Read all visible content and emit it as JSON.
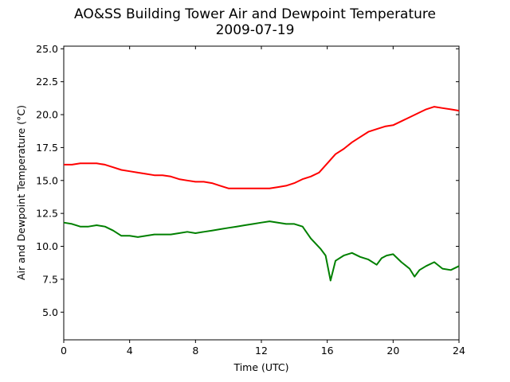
{
  "chart_data": {
    "type": "line",
    "title": "AO&SS Building Tower Air and Dewpoint Temperature",
    "subtitle": "2009-07-19",
    "xlabel": "Time (UTC)",
    "ylabel": "Air and Dewpoint Temperature (°C)",
    "xlim": [
      0,
      24
    ],
    "ylim": [
      2.9,
      25.2
    ],
    "xticks": [
      0,
      4,
      8,
      12,
      16,
      20,
      24
    ],
    "yticks": [
      "5.0",
      "7.5",
      "10.0",
      "12.5",
      "15.0",
      "17.5",
      "20.0",
      "22.5",
      "25.0"
    ],
    "grid": false,
    "legend": "none",
    "series": [
      {
        "color": "#ff0000",
        "x": [
          0,
          0.5,
          1,
          1.5,
          2,
          2.5,
          3,
          3.5,
          4,
          4.5,
          5,
          5.5,
          6,
          6.5,
          7,
          7.5,
          8,
          8.5,
          9,
          9.5,
          10,
          10.5,
          11,
          11.5,
          12,
          12.5,
          13,
          13.5,
          14,
          14.5,
          15,
          15.5,
          16,
          16.5,
          17,
          17.5,
          18,
          18.5,
          19,
          19.5,
          20,
          20.5,
          21,
          21.5,
          22,
          22.5,
          23,
          23.5,
          24
        ],
        "values": [
          16.2,
          16.2,
          16.3,
          16.3,
          16.3,
          16.2,
          16.0,
          15.8,
          15.7,
          15.6,
          15.5,
          15.4,
          15.4,
          15.3,
          15.1,
          15.0,
          14.9,
          14.9,
          14.8,
          14.6,
          14.4,
          14.4,
          14.4,
          14.4,
          14.4,
          14.4,
          14.5,
          14.6,
          14.8,
          15.1,
          15.3,
          15.6,
          16.3,
          17.0,
          17.4,
          17.9,
          18.3,
          18.7,
          18.9,
          19.1,
          19.2,
          19.5,
          19.8,
          20.1,
          20.4,
          20.6,
          20.5,
          20.4,
          20.3
        ]
      },
      {
        "color": "#008000",
        "x": [
          0,
          0.5,
          1,
          1.5,
          2,
          2.5,
          3,
          3.5,
          4,
          4.5,
          5,
          5.5,
          6,
          6.5,
          7,
          7.5,
          8,
          8.5,
          9,
          9.5,
          10,
          10.5,
          11,
          11.5,
          12,
          12.5,
          13,
          13.5,
          14,
          14.5,
          15,
          15.3,
          15.6,
          15.9,
          16.2,
          16.5,
          17,
          17.5,
          18,
          18.5,
          19,
          19.3,
          19.6,
          20,
          20.5,
          21,
          21.3,
          21.6,
          22,
          22.5,
          23,
          23.5,
          24
        ],
        "values": [
          11.8,
          11.7,
          11.5,
          11.5,
          11.6,
          11.5,
          11.2,
          10.8,
          10.8,
          10.7,
          10.8,
          10.9,
          10.9,
          10.9,
          11.0,
          11.1,
          11.0,
          11.1,
          11.2,
          11.3,
          11.4,
          11.5,
          11.6,
          11.7,
          11.8,
          11.9,
          11.8,
          11.7,
          11.7,
          11.5,
          10.6,
          10.2,
          9.8,
          9.3,
          7.4,
          8.9,
          9.3,
          9.5,
          9.2,
          9.0,
          8.6,
          9.1,
          9.3,
          9.4,
          8.8,
          8.3,
          7.7,
          8.2,
          8.5,
          8.8,
          8.3,
          8.2,
          8.5
        ]
      }
    ]
  }
}
